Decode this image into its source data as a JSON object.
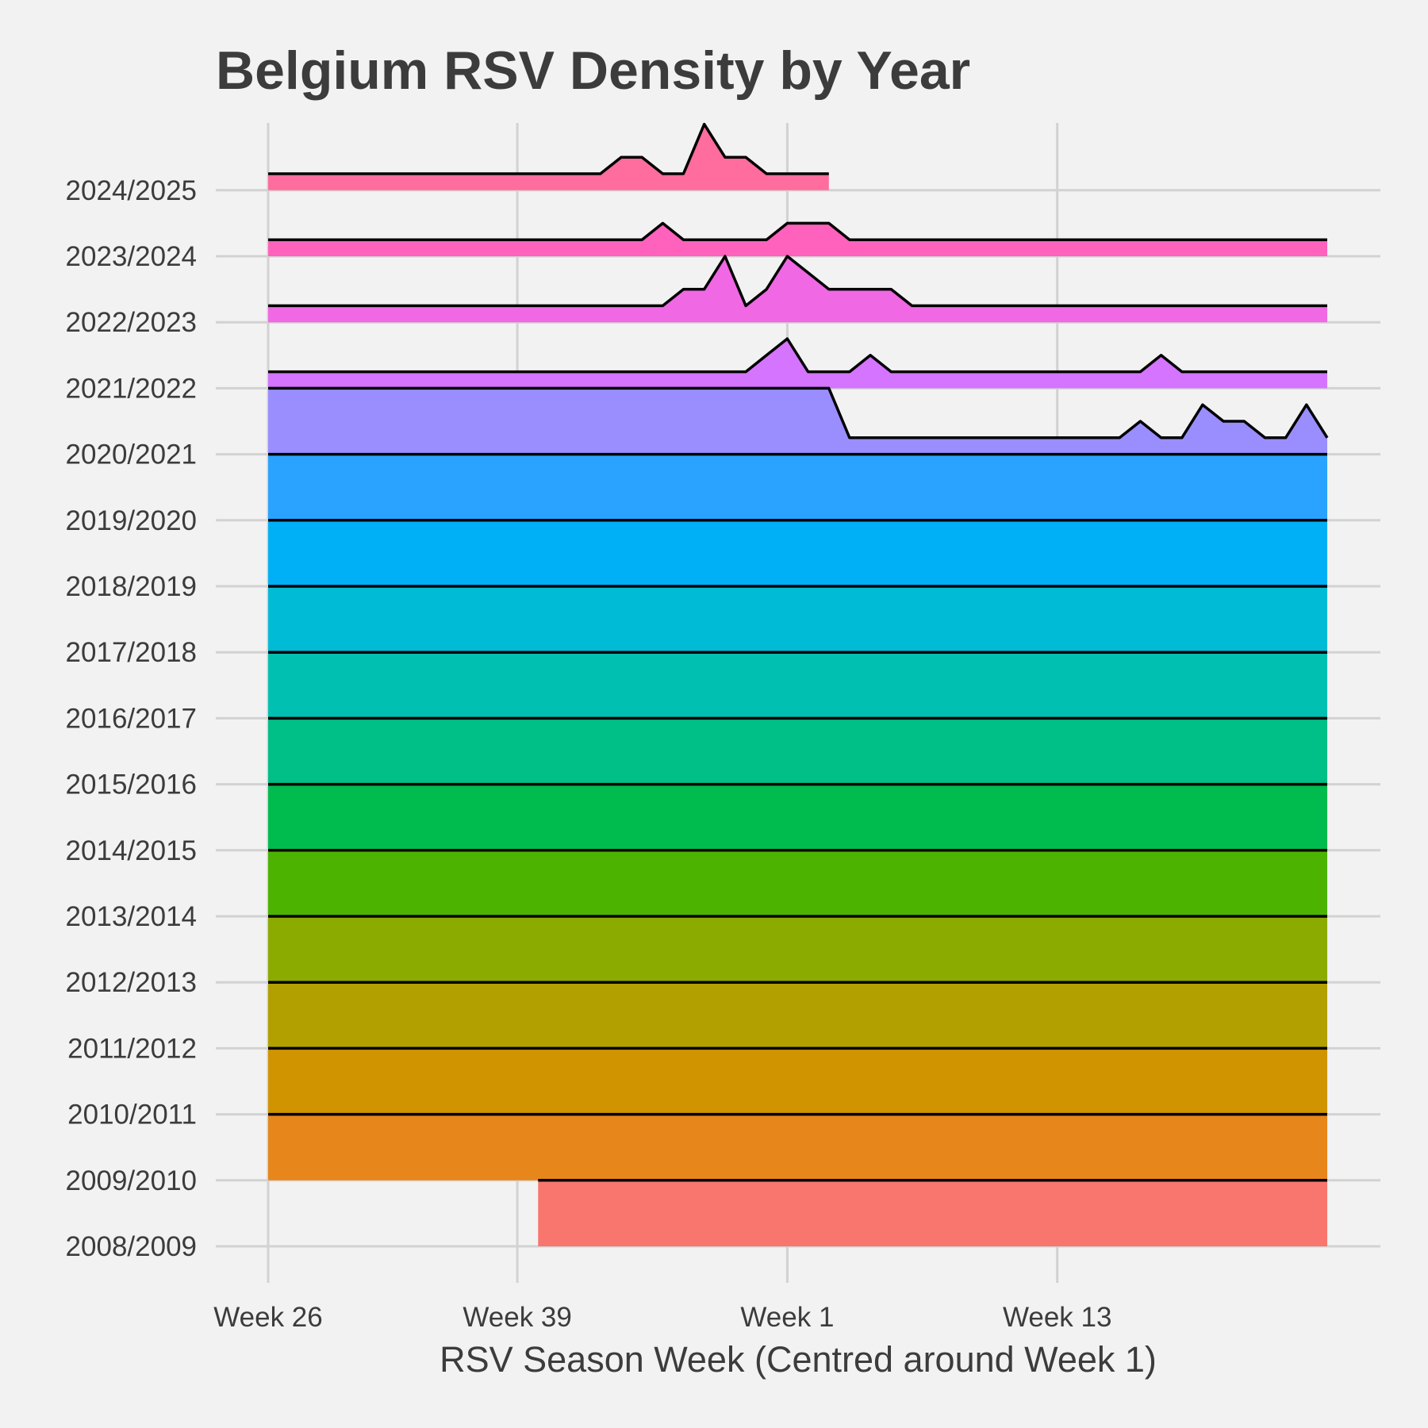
{
  "chart_data": {
    "type": "ridgeline",
    "title": "Belgium RSV Density by Year",
    "xlabel": "RSV Season Week (Centred around Week 1)",
    "ylabel": "",
    "x_unit": "season week index (0 = Week 26)",
    "xlim": [
      0,
      51
    ],
    "x_ticks": [
      {
        "x": 0,
        "label": "Week 26"
      },
      {
        "x": 12,
        "label": "Week 39"
      },
      {
        "x": 25,
        "label": "Week 1"
      },
      {
        "x": 38,
        "label": "Week 13"
      }
    ],
    "ridge_scale": 1.0,
    "grid": true,
    "legend": "none",
    "series": [
      {
        "name": "2008/2009",
        "color": "#F8766D",
        "x": [
          13,
          51
        ],
        "y": [
          1,
          1
        ]
      },
      {
        "name": "2009/2010",
        "color": "#E7861B",
        "x": [
          0,
          51
        ],
        "y": [
          1,
          1
        ]
      },
      {
        "name": "2010/2011",
        "color": "#D09400",
        "x": [
          0,
          51
        ],
        "y": [
          1,
          1
        ]
      },
      {
        "name": "2011/2012",
        "color": "#B2A000",
        "x": [
          0,
          51
        ],
        "y": [
          1,
          1
        ]
      },
      {
        "name": "2012/2013",
        "color": "#8CAB00",
        "x": [
          0,
          51
        ],
        "y": [
          1,
          1
        ]
      },
      {
        "name": "2013/2014",
        "color": "#4CB400",
        "x": [
          0,
          51
        ],
        "y": [
          1,
          1
        ]
      },
      {
        "name": "2014/2015",
        "color": "#00BB4E",
        "x": [
          0,
          51
        ],
        "y": [
          1,
          1
        ]
      },
      {
        "name": "2015/2016",
        "color": "#00BF87",
        "x": [
          0,
          51
        ],
        "y": [
          1,
          1
        ]
      },
      {
        "name": "2016/2017",
        "color": "#00C0B2",
        "x": [
          0,
          51
        ],
        "y": [
          1,
          1
        ]
      },
      {
        "name": "2017/2018",
        "color": "#00BBD6",
        "x": [
          0,
          51
        ],
        "y": [
          1,
          1
        ]
      },
      {
        "name": "2018/2019",
        "color": "#00B0F6",
        "x": [
          0,
          51
        ],
        "y": [
          1,
          1
        ]
      },
      {
        "name": "2019/2020",
        "color": "#29A3FF",
        "x": [
          0,
          51
        ],
        "y": [
          1,
          1
        ]
      },
      {
        "name": "2020/2021",
        "color": "#9A8EFF",
        "x": [
          0,
          27,
          28,
          29,
          30,
          31,
          32,
          33,
          34,
          35,
          36,
          37,
          38,
          39,
          40,
          41,
          42,
          43,
          44,
          45,
          46,
          47,
          48,
          49,
          50,
          51
        ],
        "y": [
          1,
          1,
          0.25,
          0.25,
          0.25,
          0.25,
          0.25,
          0.25,
          0.25,
          0.25,
          0.25,
          0.25,
          0.25,
          0.25,
          0.25,
          0.25,
          0.5,
          0.25,
          0.25,
          0.75,
          0.5,
          0.5,
          0.25,
          0.25,
          0.75,
          0.25
        ]
      },
      {
        "name": "2021/2022",
        "color": "#D574FF",
        "x": [
          0,
          22,
          23,
          24,
          25,
          26,
          27,
          28,
          29,
          30,
          31,
          32,
          33,
          34,
          35,
          36,
          37,
          38,
          39,
          40,
          41,
          42,
          43,
          44,
          45,
          46,
          47,
          48,
          49,
          50,
          51
        ],
        "y": [
          0.25,
          0.25,
          0.25,
          0.5,
          0.75,
          0.25,
          0.25,
          0.25,
          0.5,
          0.25,
          0.25,
          0.25,
          0.25,
          0.25,
          0.25,
          0.25,
          0.25,
          0.25,
          0.25,
          0.25,
          0.25,
          0.25,
          0.5,
          0.25,
          0.25,
          0.25,
          0.25,
          0.25,
          0.25,
          0.25,
          0.25
        ]
      },
      {
        "name": "2022/2023",
        "color": "#F068E4",
        "x": [
          0,
          19,
          20,
          21,
          22,
          23,
          24,
          25,
          26,
          27,
          28,
          29,
          30,
          31,
          32,
          51
        ],
        "y": [
          0.25,
          0.25,
          0.5,
          0.5,
          1.0,
          0.25,
          0.5,
          1.0,
          0.75,
          0.5,
          0.5,
          0.5,
          0.5,
          0.25,
          0.25,
          0.25
        ]
      },
      {
        "name": "2023/2024",
        "color": "#FF62BC",
        "x": [
          0,
          18,
          19,
          20,
          21,
          22,
          23,
          24,
          25,
          26,
          27,
          28,
          51
        ],
        "y": [
          0.25,
          0.25,
          0.5,
          0.25,
          0.25,
          0.25,
          0.25,
          0.25,
          0.5,
          0.5,
          0.5,
          0.25,
          0.25
        ]
      },
      {
        "name": "2024/2025",
        "color": "#FF6C9E",
        "x": [
          0,
          16,
          17,
          18,
          19,
          20,
          21,
          22,
          23,
          24,
          25,
          26,
          27
        ],
        "y": [
          0.25,
          0.25,
          0.5,
          0.5,
          0.25,
          0.25,
          1.0,
          0.5,
          0.5,
          0.25,
          0.25,
          0.25,
          0.25
        ]
      }
    ]
  }
}
